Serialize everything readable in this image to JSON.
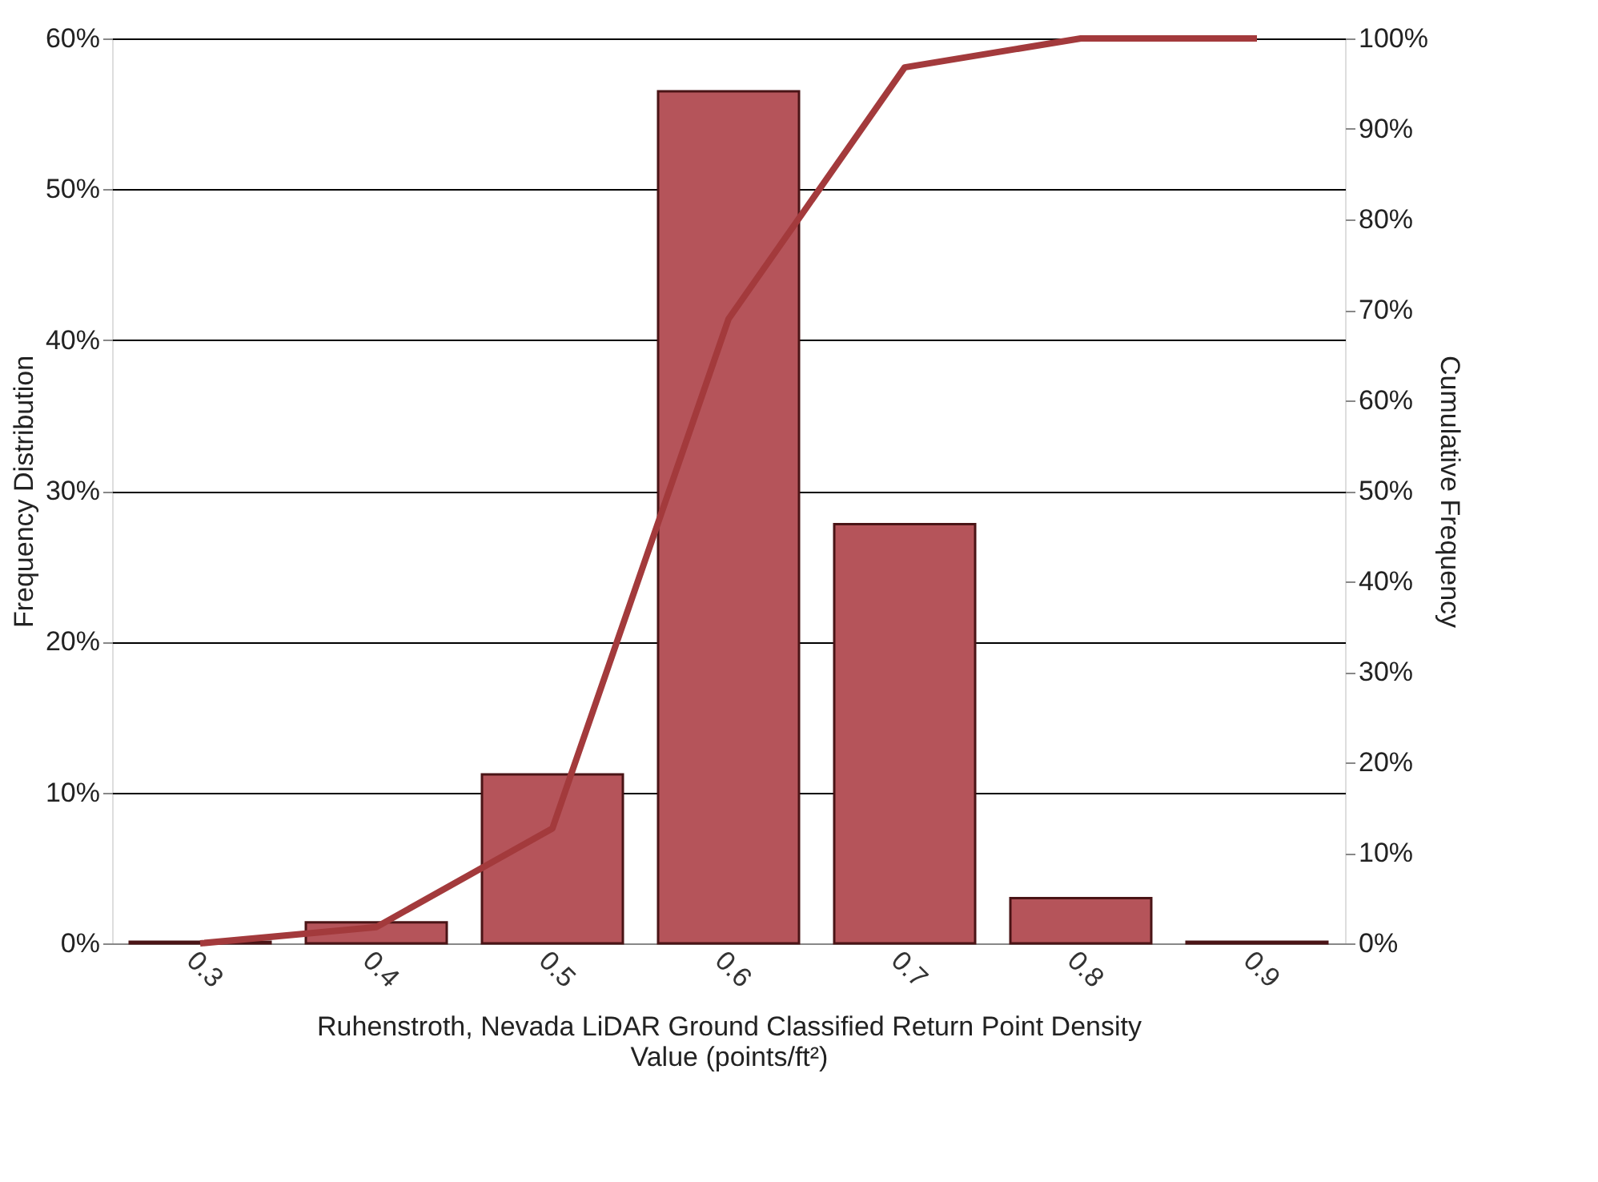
{
  "chart_data": {
    "type": "bar",
    "categories": [
      "0.3",
      "0.4",
      "0.5",
      "0.6",
      "0.7",
      "0.8",
      "0.9"
    ],
    "xlabel": "Ruhenstroth, Nevada  LiDAR Ground Classified Return Point Density\nValue (points/ft²)",
    "ylabel": "Frequency Distribution",
    "y2label": "Cumulative Frequency",
    "series": [
      {
        "color": "#b5545a",
        "values": [
          0.1,
          1.4,
          11.2,
          56.5,
          27.8,
          3.0,
          0.1
        ]
      },
      {
        "type": "line",
        "axis": "y2",
        "color": "#a33a3c",
        "values": [
          0,
          1.8,
          12.7,
          69,
          96.8,
          100,
          100
        ]
      }
    ],
    "ylim": [
      0,
      60
    ],
    "yticks": [
      {
        "value": 0,
        "label": "0%"
      },
      {
        "value": 10,
        "label": "10%"
      },
      {
        "value": 20,
        "label": "20%"
      },
      {
        "value": 30,
        "label": "30%"
      },
      {
        "value": 40,
        "label": "40%"
      },
      {
        "value": 50,
        "label": "50%"
      },
      {
        "value": 60,
        "label": "60%"
      }
    ],
    "y2lim": [
      0,
      100
    ],
    "y2ticks": [
      {
        "value": 0,
        "label": "0%"
      },
      {
        "value": 10,
        "label": "10%"
      },
      {
        "value": 20,
        "label": "20%"
      },
      {
        "value": 30,
        "label": "30%"
      },
      {
        "value": 40,
        "label": "40%"
      },
      {
        "value": 50,
        "label": "50%"
      },
      {
        "value": 60,
        "label": "60%"
      },
      {
        "value": 70,
        "label": "70%"
      },
      {
        "value": 80,
        "label": "80%"
      },
      {
        "value": 90,
        "label": "90%"
      },
      {
        "value": 100,
        "label": "100%"
      }
    ],
    "grid": "y",
    "marker": "none",
    "line_style": "solid"
  }
}
